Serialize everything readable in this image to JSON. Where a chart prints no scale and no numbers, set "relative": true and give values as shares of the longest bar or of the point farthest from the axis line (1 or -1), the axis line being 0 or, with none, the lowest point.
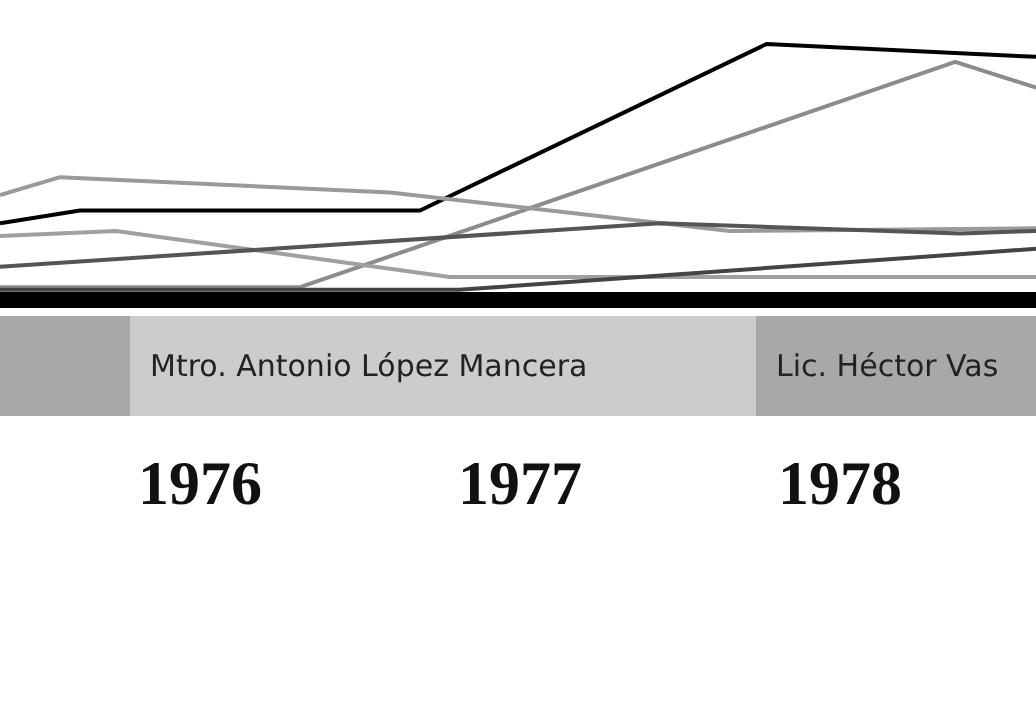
{
  "chart_data": {
    "type": "line",
    "relative": true,
    "marker": "none",
    "line_style": "solid",
    "xlim": [
      1975.375,
      1978.6125
    ],
    "xticks": [
      1976,
      1977,
      1978
    ],
    "series": [
      {
        "color": "#000000",
        "x": [
          1975.375,
          1975.625,
          1976.6875,
          1977.77,
          1978.6125
        ],
        "values": [
          0.3,
          0.35,
          0.35,
          1,
          0.95
        ]
      },
      {
        "color": "#8c8c8c",
        "x": [
          1975.375,
          1976.3125,
          1978.36,
          1978.6125
        ],
        "values": [
          0.05,
          0.05,
          0.93,
          0.83
        ]
      },
      {
        "color": "#9a9a9a",
        "x": [
          1975.375,
          1975.5625,
          1976.594,
          1977.656,
          1978.6125
        ],
        "values": [
          0.41,
          0.48,
          0.42,
          0.27,
          0.28
        ]
      },
      {
        "color": "#a0a0a0",
        "x": [
          1975.375,
          1975.7375,
          1976.78,
          1978.6125
        ],
        "values": [
          0.25,
          0.27,
          0.09,
          0.09
        ]
      },
      {
        "color": "#555555",
        "x": [
          1975.375,
          1977.4375,
          1978.375,
          1978.6125
        ],
        "values": [
          0.13,
          0.3,
          0.26,
          0.27
        ]
      },
      {
        "color": "#444444",
        "x": [
          1975.375,
          1976.81,
          1978.6125
        ],
        "values": [
          0.04,
          0.04,
          0.2
        ]
      }
    ],
    "annotations": [
      "Mtro. Antonio López Mancera",
      "Lic. Héctor Vas"
    ]
  }
}
